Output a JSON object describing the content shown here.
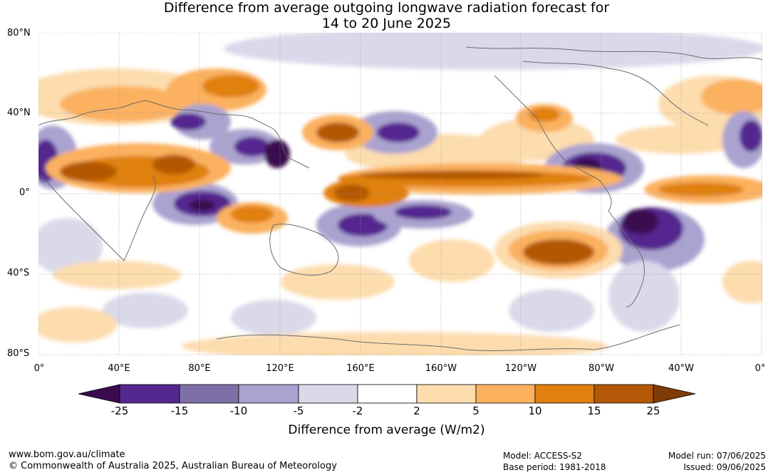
{
  "title": {
    "line1": "Difference from average outgoing longwave radiation forecast for",
    "line2": "14 to 20 June 2025"
  },
  "lat_labels": [
    "80°N",
    "40°N",
    "0°",
    "40°S",
    "80°S"
  ],
  "lon_labels": [
    "0°",
    "40°E",
    "80°E",
    "120°E",
    "160°E",
    "160°W",
    "120°W",
    "80°W",
    "40°W",
    "0°"
  ],
  "colorbar": {
    "title": "Difference from average (W/m2)",
    "tick_labels": [
      "-25",
      "-15",
      "-10",
      "-5",
      "-2",
      "2",
      "5",
      "10",
      "15",
      "25"
    ],
    "colors": [
      "#3b0b4f",
      "#54278f",
      "#7f6fa8",
      "#aaa3cf",
      "#d9d9ea",
      "#ffffff",
      "#fddcae",
      "#fbb15e",
      "#e0800f",
      "#b35806",
      "#7f3b08"
    ]
  },
  "footer": {
    "website": "www.bom.gov.au/climate",
    "copyright": "© Commonwealth of Australia 2025, Australian Bureau of Meteorology",
    "model": "Model: ACCESS-S2",
    "base_period": "Base period: 1981-2018",
    "model_run": "Model run: 07/06/2025",
    "issued": "Issued: 09/06/2025"
  }
}
